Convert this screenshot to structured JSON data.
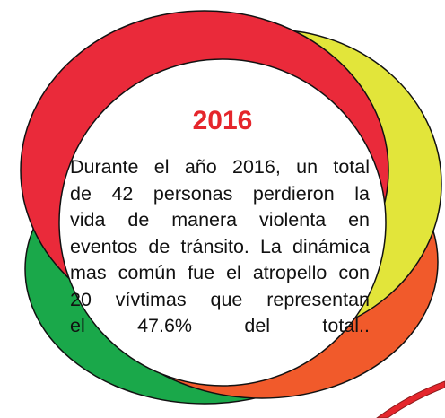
{
  "title": "2016",
  "body": {
    "lines": [
      "Durante el año 2016, un total",
      "de 42 personas perdieron la",
      "vida de manera violenta en",
      "eventos de tránsito. La dinámica",
      "mas común fue el atropello con",
      "20 vívtimas que representan",
      "el 47.6% del total.."
    ]
  }
}
